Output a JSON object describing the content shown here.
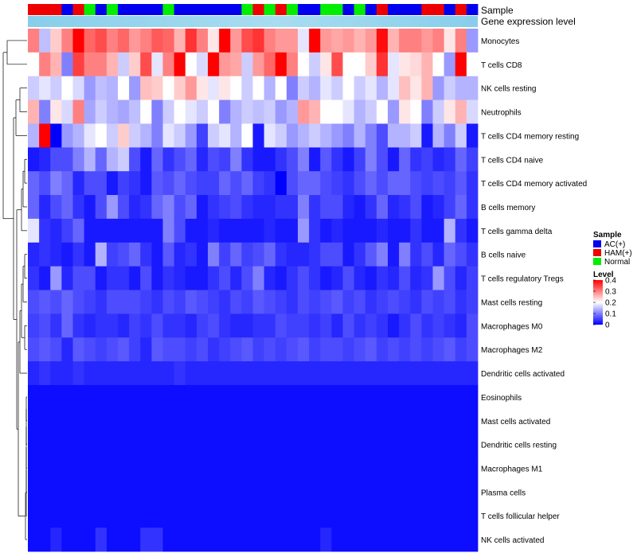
{
  "chart_data": {
    "type": "heatmap",
    "annotation_rows": {
      "sample_label": "Sample",
      "expression_label": "Gene expression level"
    },
    "rows": [
      "Monocytes",
      "T cells CD8",
      "NK cells resting",
      "Neutrophils",
      "T cells CD4 memory resting",
      "T cells CD4 naive",
      "T cells CD4 memory activated",
      "B cells memory",
      "T cells gamma delta",
      "B cells naive",
      "T cells regulatory  Tregs",
      "Mast cells resting",
      "Macrophages M0",
      "Macrophages M2",
      "Dendritic cells activated",
      "Eosinophils",
      "Mast cells activated",
      "Dendritic cells resting",
      "Macrophages M1",
      "Plasma cells",
      "T cells follicular helper",
      "NK cells activated"
    ],
    "sample_groups": [
      "HAM(+)",
      "HAM(+)",
      "HAM(+)",
      "AC(+)",
      "HAM(+)",
      "Normal",
      "AC(+)",
      "Normal",
      "AC(+)",
      "AC(+)",
      "AC(+)",
      "AC(+)",
      "Normal",
      "AC(+)",
      "AC(+)",
      "AC(+)",
      "AC(+)",
      "AC(+)",
      "AC(+)",
      "Normal",
      "HAM(+)",
      "Normal",
      "HAM(+)",
      "Normal",
      "AC(+)",
      "AC(+)",
      "Normal",
      "Normal",
      "AC(+)",
      "Normal",
      "AC(+)",
      "HAM(+)",
      "AC(+)",
      "AC(+)",
      "AC(+)",
      "HAM(+)",
      "HAM(+)",
      "AC(+)",
      "HAM(+)",
      "AC(+)"
    ],
    "values": [
      [
        0.3,
        0.15,
        0.24,
        0.3,
        0.4,
        0.32,
        0.34,
        0.3,
        0.32,
        0.28,
        0.3,
        0.33,
        0.32,
        0.26,
        0.36,
        0.3,
        0.22,
        0.4,
        0.28,
        0.34,
        0.36,
        0.3,
        0.28,
        0.28,
        0.18,
        0.4,
        0.28,
        0.27,
        0.28,
        0.26,
        0.28,
        0.39,
        0.26,
        0.3,
        0.3,
        0.28,
        0.3,
        0.22,
        0.3,
        0.12
      ],
      [
        0.2,
        0.3,
        0.26,
        0.1,
        0.35,
        0.3,
        0.3,
        0.26,
        0.16,
        0.24,
        0.34,
        0.18,
        0.3,
        0.4,
        0.2,
        0.17,
        0.4,
        0.28,
        0.27,
        0.16,
        0.28,
        0.32,
        0.4,
        0.3,
        0.2,
        0.16,
        0.22,
        0.34,
        0.2,
        0.2,
        0.24,
        0.36,
        0.18,
        0.22,
        0.23,
        0.26,
        0.2,
        0.12,
        0.4,
        0.2
      ],
      [
        0.16,
        0.18,
        0.16,
        0.2,
        0.17,
        0.12,
        0.15,
        0.14,
        0.2,
        0.12,
        0.25,
        0.24,
        0.2,
        0.24,
        0.28,
        0.22,
        0.18,
        0.22,
        0.2,
        0.16,
        0.2,
        0.14,
        0.2,
        0.1,
        0.16,
        0.14,
        0.18,
        0.16,
        0.2,
        0.16,
        0.18,
        0.14,
        0.18,
        0.25,
        0.22,
        0.26,
        0.12,
        0.16,
        0.14,
        0.14
      ],
      [
        0.26,
        0.1,
        0.22,
        0.17,
        0.3,
        0.13,
        0.16,
        0.14,
        0.13,
        0.15,
        0.2,
        0.1,
        0.16,
        0.2,
        0.18,
        0.16,
        0.2,
        0.1,
        0.14,
        0.16,
        0.15,
        0.16,
        0.12,
        0.14,
        0.28,
        0.26,
        0.2,
        0.2,
        0.18,
        0.14,
        0.16,
        0.2,
        0.12,
        0.22,
        0.2,
        0.1,
        0.16,
        0.22,
        0.26,
        0.17
      ],
      [
        0.14,
        0.4,
        0.0,
        0.12,
        0.14,
        0.18,
        0.2,
        0.16,
        0.24,
        0.16,
        0.14,
        0.1,
        0.18,
        0.16,
        0.12,
        0.05,
        0.16,
        0.18,
        0.14,
        0.2,
        0.02,
        0.18,
        0.16,
        0.12,
        0.14,
        0.16,
        0.14,
        0.12,
        0.1,
        0.14,
        0.1,
        0.06,
        0.14,
        0.14,
        0.16,
        0.02,
        0.14,
        0.1,
        0.16,
        0.02
      ],
      [
        0.02,
        0.03,
        0.06,
        0.06,
        0.1,
        0.14,
        0.08,
        0.14,
        0.16,
        0.06,
        0.02,
        0.08,
        0.04,
        0.06,
        0.08,
        0.03,
        0.06,
        0.05,
        0.1,
        0.04,
        0.02,
        0.02,
        0.04,
        0.06,
        0.1,
        0.02,
        0.07,
        0.04,
        0.02,
        0.05,
        0.1,
        0.06,
        0.02,
        0.08,
        0.04,
        0.05,
        0.03,
        0.04,
        0.08,
        0.05
      ],
      [
        0.08,
        0.06,
        0.1,
        0.08,
        0.03,
        0.06,
        0.06,
        0.02,
        0.05,
        0.04,
        0.02,
        0.07,
        0.06,
        0.08,
        0.06,
        0.05,
        0.05,
        0.08,
        0.06,
        0.08,
        0.05,
        0.04,
        0.0,
        0.06,
        0.08,
        0.08,
        0.06,
        0.05,
        0.04,
        0.06,
        0.08,
        0.06,
        0.08,
        0.08,
        0.06,
        0.05,
        0.06,
        0.05,
        0.07,
        0.04
      ],
      [
        0.08,
        0.03,
        0.06,
        0.08,
        0.04,
        0.02,
        0.06,
        0.12,
        0.06,
        0.03,
        0.04,
        0.08,
        0.1,
        0.06,
        0.08,
        0.02,
        0.04,
        0.05,
        0.06,
        0.04,
        0.03,
        0.03,
        0.04,
        0.04,
        0.1,
        0.04,
        0.06,
        0.06,
        0.03,
        0.02,
        0.04,
        0.08,
        0.03,
        0.04,
        0.06,
        0.02,
        0.03,
        0.05,
        0.08,
        0.04
      ],
      [
        0.18,
        0.04,
        0.03,
        0.05,
        0.08,
        0.02,
        0.02,
        0.02,
        0.02,
        0.02,
        0.02,
        0.02,
        0.1,
        0.06,
        0.02,
        0.02,
        0.03,
        0.02,
        0.02,
        0.02,
        0.02,
        0.03,
        0.02,
        0.02,
        0.12,
        0.04,
        0.02,
        0.03,
        0.02,
        0.02,
        0.02,
        0.03,
        0.02,
        0.02,
        0.04,
        0.02,
        0.02,
        0.14,
        0.04,
        0.02
      ],
      [
        0.03,
        0.04,
        0.03,
        0.02,
        0.04,
        0.02,
        0.14,
        0.05,
        0.06,
        0.08,
        0.04,
        0.02,
        0.07,
        0.03,
        0.04,
        0.02,
        0.1,
        0.05,
        0.08,
        0.05,
        0.06,
        0.08,
        0.04,
        0.03,
        0.03,
        0.04,
        0.06,
        0.06,
        0.02,
        0.04,
        0.07,
        0.1,
        0.02,
        0.1,
        0.04,
        0.06,
        0.03,
        0.08,
        0.06,
        0.04
      ],
      [
        0.04,
        0.02,
        0.12,
        0.03,
        0.06,
        0.06,
        0.02,
        0.04,
        0.04,
        0.02,
        0.06,
        0.02,
        0.04,
        0.03,
        0.02,
        0.02,
        0.04,
        0.06,
        0.03,
        0.06,
        0.1,
        0.03,
        0.02,
        0.04,
        0.06,
        0.04,
        0.02,
        0.03,
        0.06,
        0.03,
        0.02,
        0.04,
        0.03,
        0.06,
        0.03,
        0.04,
        0.12,
        0.06,
        0.03,
        0.05
      ],
      [
        0.06,
        0.07,
        0.06,
        0.08,
        0.06,
        0.05,
        0.04,
        0.06,
        0.06,
        0.06,
        0.05,
        0.04,
        0.06,
        0.05,
        0.07,
        0.06,
        0.05,
        0.04,
        0.06,
        0.05,
        0.07,
        0.06,
        0.05,
        0.04,
        0.06,
        0.05,
        0.06,
        0.07,
        0.05,
        0.06,
        0.04,
        0.05,
        0.06,
        0.05,
        0.04,
        0.06,
        0.05,
        0.06,
        0.04,
        0.05
      ],
      [
        0.05,
        0.06,
        0.04,
        0.08,
        0.04,
        0.03,
        0.04,
        0.04,
        0.03,
        0.05,
        0.04,
        0.06,
        0.04,
        0.04,
        0.03,
        0.05,
        0.06,
        0.04,
        0.03,
        0.03,
        0.04,
        0.04,
        0.06,
        0.05,
        0.05,
        0.04,
        0.05,
        0.03,
        0.06,
        0.04,
        0.05,
        0.04,
        0.02,
        0.04,
        0.06,
        0.04,
        0.05,
        0.04,
        0.03,
        0.06
      ],
      [
        0.06,
        0.07,
        0.06,
        0.03,
        0.07,
        0.06,
        0.05,
        0.06,
        0.07,
        0.05,
        0.03,
        0.07,
        0.06,
        0.06,
        0.05,
        0.06,
        0.04,
        0.05,
        0.06,
        0.07,
        0.05,
        0.06,
        0.05,
        0.06,
        0.07,
        0.05,
        0.06,
        0.06,
        0.05,
        0.06,
        0.07,
        0.05,
        0.06,
        0.05,
        0.06,
        0.05,
        0.06,
        0.07,
        0.05,
        0.06
      ],
      [
        0.03,
        0.04,
        0.03,
        0.03,
        0.04,
        0.03,
        0.03,
        0.03,
        0.03,
        0.03,
        0.03,
        0.03,
        0.03,
        0.04,
        0.03,
        0.03,
        0.03,
        0.03,
        0.03,
        0.03,
        0.03,
        0.03,
        0.03,
        0.03,
        0.03,
        0.03,
        0.03,
        0.03,
        0.03,
        0.03,
        0.03,
        0.03,
        0.03,
        0.03,
        0.03,
        0.03,
        0.03,
        0.03,
        0.03,
        0.03
      ],
      [
        0.01,
        0.01,
        0.01,
        0.01,
        0.01,
        0.01,
        0.01,
        0.01,
        0.01,
        0.01,
        0.01,
        0.01,
        0.01,
        0.01,
        0.01,
        0.01,
        0.01,
        0.01,
        0.01,
        0.01,
        0.01,
        0.01,
        0.01,
        0.01,
        0.01,
        0.01,
        0.01,
        0.01,
        0.01,
        0.01,
        0.01,
        0.01,
        0.01,
        0.01,
        0.01,
        0.01,
        0.01,
        0.01,
        0.01,
        0.01
      ],
      [
        0.01,
        0.01,
        0.01,
        0.01,
        0.01,
        0.01,
        0.01,
        0.01,
        0.01,
        0.01,
        0.01,
        0.01,
        0.01,
        0.01,
        0.01,
        0.01,
        0.01,
        0.01,
        0.01,
        0.01,
        0.01,
        0.01,
        0.01,
        0.01,
        0.01,
        0.01,
        0.01,
        0.01,
        0.01,
        0.01,
        0.01,
        0.01,
        0.01,
        0.01,
        0.01,
        0.01,
        0.01,
        0.01,
        0.01,
        0.01
      ],
      [
        0.01,
        0.01,
        0.01,
        0.01,
        0.01,
        0.01,
        0.01,
        0.01,
        0.01,
        0.01,
        0.01,
        0.01,
        0.01,
        0.01,
        0.01,
        0.01,
        0.01,
        0.01,
        0.01,
        0.01,
        0.01,
        0.01,
        0.01,
        0.01,
        0.01,
        0.01,
        0.01,
        0.01,
        0.01,
        0.01,
        0.01,
        0.01,
        0.01,
        0.01,
        0.01,
        0.01,
        0.01,
        0.01,
        0.01,
        0.01
      ],
      [
        0.01,
        0.01,
        0.01,
        0.01,
        0.01,
        0.01,
        0.01,
        0.01,
        0.01,
        0.01,
        0.01,
        0.01,
        0.01,
        0.01,
        0.01,
        0.01,
        0.01,
        0.01,
        0.01,
        0.01,
        0.01,
        0.01,
        0.01,
        0.01,
        0.01,
        0.01,
        0.01,
        0.01,
        0.01,
        0.01,
        0.01,
        0.01,
        0.01,
        0.01,
        0.01,
        0.01,
        0.01,
        0.01,
        0.01,
        0.01
      ],
      [
        0.01,
        0.01,
        0.01,
        0.01,
        0.01,
        0.01,
        0.01,
        0.01,
        0.01,
        0.01,
        0.01,
        0.01,
        0.01,
        0.01,
        0.01,
        0.01,
        0.01,
        0.01,
        0.01,
        0.01,
        0.01,
        0.01,
        0.01,
        0.01,
        0.01,
        0.01,
        0.01,
        0.01,
        0.01,
        0.01,
        0.01,
        0.01,
        0.01,
        0.01,
        0.01,
        0.01,
        0.01,
        0.01,
        0.01,
        0.01
      ],
      [
        0.01,
        0.01,
        0.01,
        0.01,
        0.01,
        0.01,
        0.01,
        0.01,
        0.01,
        0.01,
        0.01,
        0.01,
        0.01,
        0.01,
        0.01,
        0.01,
        0.01,
        0.01,
        0.01,
        0.01,
        0.01,
        0.01,
        0.01,
        0.01,
        0.01,
        0.01,
        0.01,
        0.01,
        0.01,
        0.01,
        0.01,
        0.01,
        0.01,
        0.01,
        0.01,
        0.01,
        0.01,
        0.01,
        0.01,
        0.01
      ],
      [
        0.01,
        0.01,
        0.03,
        0.01,
        0.01,
        0.01,
        0.04,
        0.01,
        0.01,
        0.01,
        0.04,
        0.04,
        0.01,
        0.01,
        0.01,
        0.01,
        0.01,
        0.01,
        0.01,
        0.01,
        0.01,
        0.01,
        0.01,
        0.01,
        0.01,
        0.01,
        0.03,
        0.01,
        0.01,
        0.01,
        0.01,
        0.01,
        0.01,
        0.01,
        0.01,
        0.01,
        0.01,
        0.01,
        0.01,
        0.01
      ]
    ],
    "legend": {
      "sample_title": "Sample",
      "groups": [
        {
          "name": "AC(+)",
          "color": "#0000ee"
        },
        {
          "name": "HAM(+)",
          "color": "#ee0000"
        },
        {
          "name": "Normal",
          "color": "#00ee00"
        }
      ],
      "level_title": "Level",
      "level_ticks": [
        "0.4",
        "0.3",
        "0.2",
        "0.1",
        "0"
      ],
      "level_tick_values": [
        0.4,
        0.3,
        0.2,
        0.1,
        0
      ],
      "value_range": [
        0,
        0.4
      ]
    },
    "colors": {
      "low": "#0000ff",
      "mid": "#ffffff",
      "high": "#ff0000",
      "expression_bar": "#87ceeb",
      "expression_bar_light": "#a8dcf0",
      "dendrogram": "#000000"
    }
  }
}
